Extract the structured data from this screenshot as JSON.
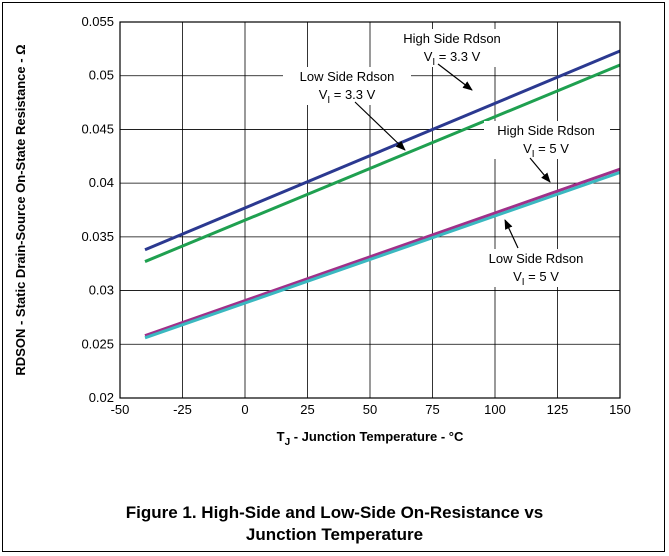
{
  "chart_data": {
    "type": "line",
    "xlabel": "T",
    "xlabel_sub": "J",
    "xlabel_rest": " - Junction Temperature - °C",
    "ylabel": "RDSON - Static Drain-Source On-State Resistance - Ω",
    "xlim": [
      -50,
      150
    ],
    "ylim": [
      0.02,
      0.055
    ],
    "xticks": [
      "-50",
      "-25",
      "0",
      "25",
      "50",
      "75",
      "100",
      "125",
      "150"
    ],
    "yticks": [
      "0.02",
      "0.025",
      "0.03",
      "0.035",
      "0.04",
      "0.045",
      "0.05",
      "0.055"
    ],
    "grid": true,
    "series": [
      {
        "color": "#2b3990",
        "x": [
          -40,
          150
        ],
        "y": [
          0.0338,
          0.0523
        ]
      },
      {
        "color": "#1fa050",
        "x": [
          -40,
          150
        ],
        "y": [
          0.0327,
          0.051
        ]
      },
      {
        "color": "#a0308a",
        "x": [
          -40,
          150
        ],
        "y": [
          0.0258,
          0.0413
        ]
      },
      {
        "color": "#3ab8c0",
        "x": [
          -40,
          150
        ],
        "y": [
          0.0256,
          0.041
        ]
      }
    ],
    "annotations": [
      {
        "line1": "High Side Rdson",
        "line2a": "V",
        "line2sub": "I",
        "line2b": " = 3.3 V"
      },
      {
        "line1": "Low Side Rdson",
        "line2a": "V",
        "line2sub": "I",
        "line2b": " = 3.3 V"
      },
      {
        "line1": "High Side Rdson",
        "line2a": "V",
        "line2sub": "I",
        "line2b": " = 5 V"
      },
      {
        "line1": "Low Side Rdson",
        "line2a": "V",
        "line2sub": "I",
        "line2b": " = 5 V"
      }
    ]
  },
  "caption": {
    "line1": "Figure 1. High-Side and Low-Side On-Resistance vs",
    "line2": "Junction Temperature"
  }
}
